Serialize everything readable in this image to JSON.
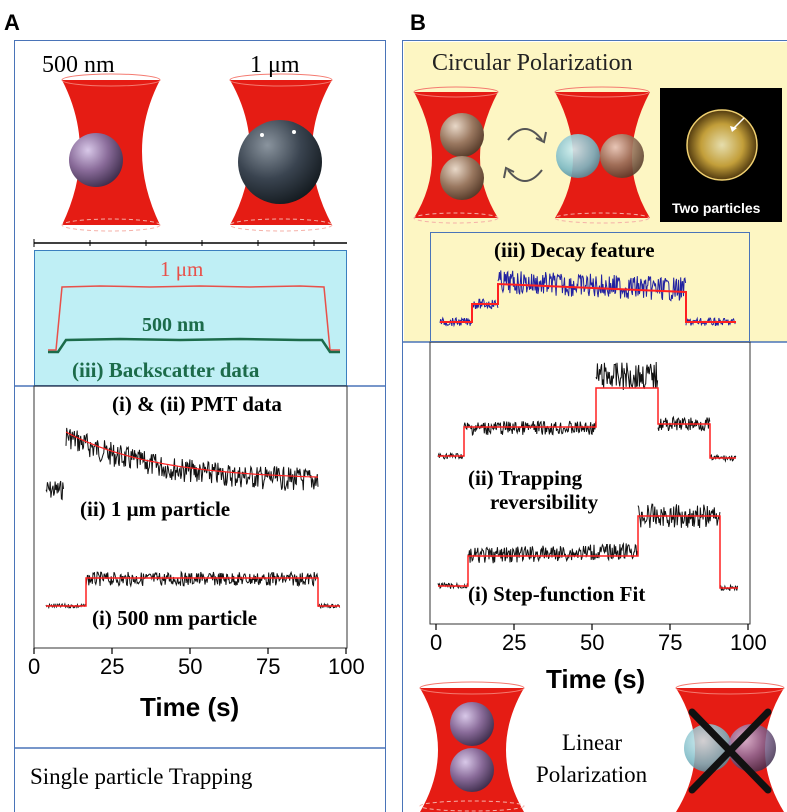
{
  "panel_a": {
    "letter": "A",
    "label_500nm": "500 nm",
    "label_1um": "1 μm",
    "backscatter": {
      "label_1um": "1 μm",
      "label_500nm": "500 nm",
      "title": "(iii) Backscatter data"
    },
    "pmt": {
      "title": "(i) & (ii) PMT data",
      "label_1um": "(ii) 1 μm particle",
      "label_500nm": "(i) 500 nm particle"
    },
    "axis": {
      "xlabel": "Time (s)",
      "ticks": [
        "0",
        "25",
        "50",
        "75",
        "100"
      ]
    },
    "caption": "Single particle Trapping"
  },
  "panel_b": {
    "letter": "B",
    "circular_title": "Circular Polarization",
    "photo_label": "Two particles",
    "decay_title": "(iii) Decay feature",
    "trace_rev_line1": "(ii) Trapping",
    "trace_rev_line2": "reversibility",
    "trace_step": "(i) Step-function Fit",
    "axis": {
      "xlabel": "Time (s)",
      "ticks": [
        "0",
        "25",
        "50",
        "75",
        "100"
      ]
    },
    "linear_line1": "Linear",
    "linear_line2": "Polarization"
  },
  "colors": {
    "beam": "#e51c14",
    "frame": "#4a74b8",
    "cyan_bg": "#bfeff5",
    "yellow_bg": "#fdf6c3",
    "fit_line": "#ff2020",
    "trace_1um": "#e8504a",
    "trace_500nm": "#1c6b4a",
    "decay_trace": "#2020a0"
  }
}
